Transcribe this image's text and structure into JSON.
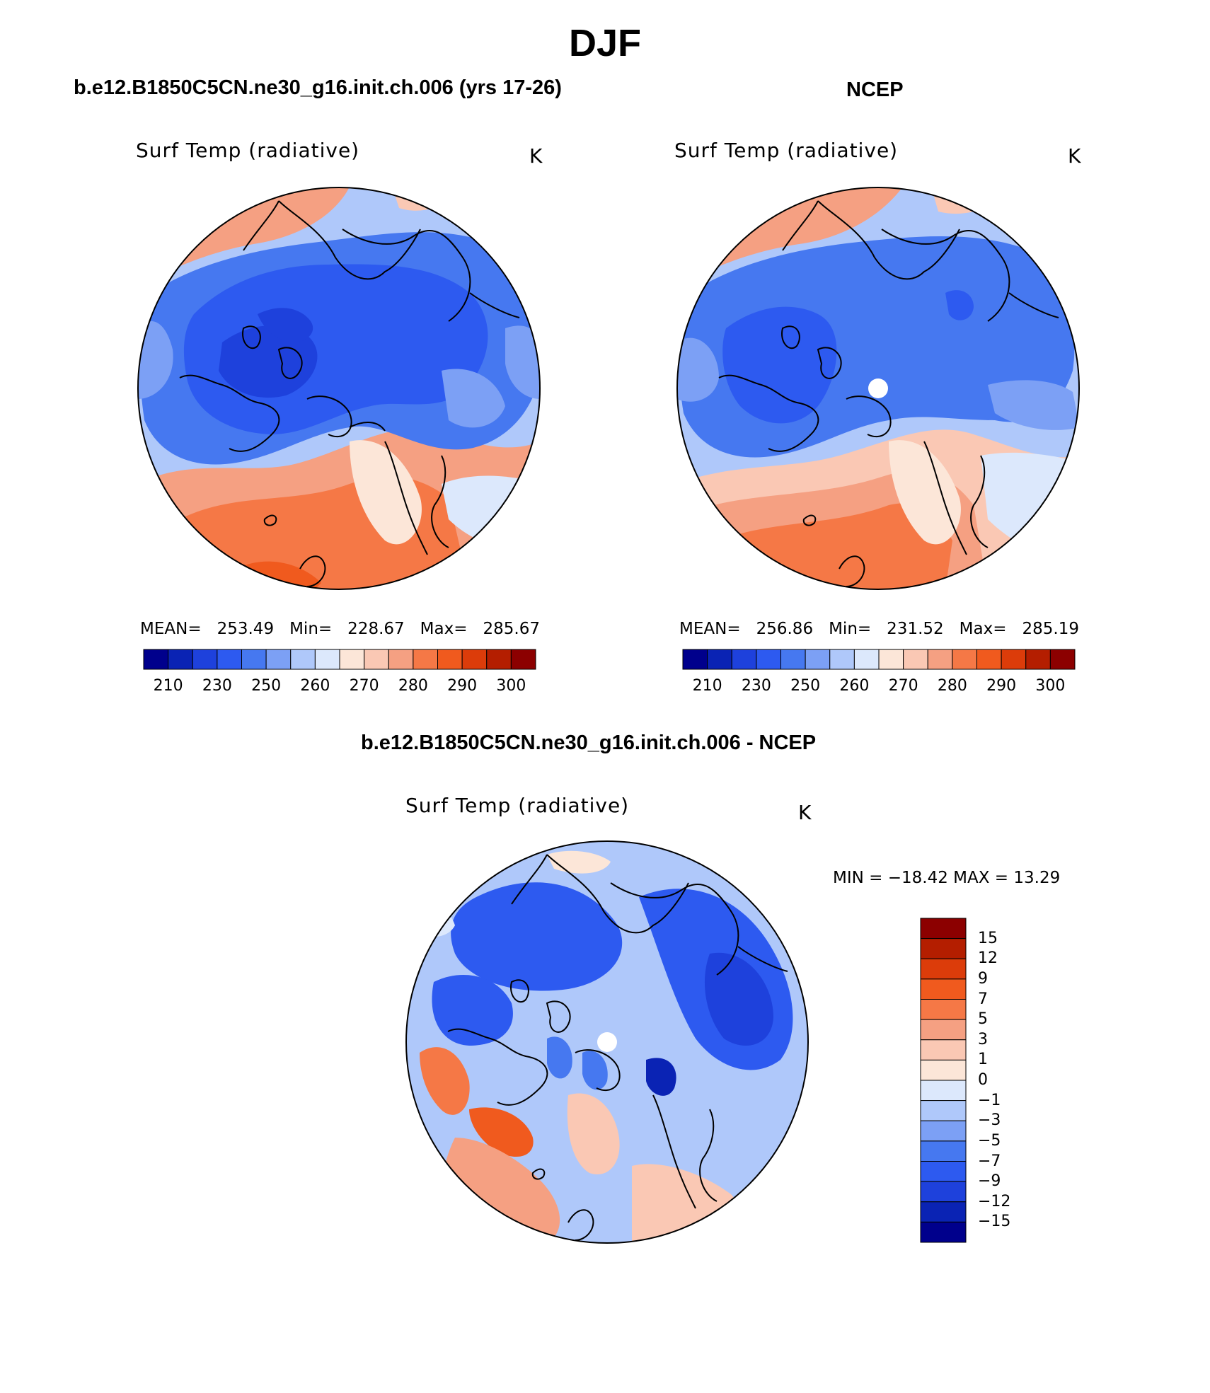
{
  "title": "DJF",
  "panel_left": {
    "title": "b.e12.B1850C5CN.ne30_g16.init.ch.006 (yrs 17-26)",
    "variable": "Surf Temp (radiative)",
    "units": "K",
    "mean_label": "MEAN=",
    "mean": "253.49",
    "min_label": "Min=",
    "min": "228.67",
    "max_label": "Max=",
    "max": "285.67"
  },
  "panel_right": {
    "title": "NCEP",
    "variable": "Surf Temp (radiative)",
    "units": "K",
    "mean_label": "MEAN=",
    "mean": "256.86",
    "min_label": "Min=",
    "min": "231.52",
    "max_label": "Max=",
    "max": "285.19"
  },
  "panel_diff": {
    "title": "b.e12.B1850C5CN.ne30_g16.init.ch.006 - NCEP",
    "variable": "Surf Temp (radiative)",
    "units": "K",
    "minmax": "MIN = −18.42  MAX =   13.29"
  },
  "colorbar_abs": {
    "tick_labels": [
      "210",
      "230",
      "250",
      "260",
      "270",
      "280",
      "290",
      "300"
    ],
    "colors": [
      "#00008c",
      "#0a23b4",
      "#1e41dc",
      "#2d5af0",
      "#4678f0",
      "#7ca0f5",
      "#afc8fa",
      "#dce8fc",
      "#fce6d8",
      "#fac8b4",
      "#f5a082",
      "#f57846",
      "#f05a1e",
      "#dc3c0a",
      "#b41e00",
      "#8c0000"
    ]
  },
  "colorbar_diff": {
    "tick_labels": [
      "15",
      "12",
      "9",
      "7",
      "5",
      "3",
      "1",
      "0",
      "−1",
      "−3",
      "−5",
      "−7",
      "−9",
      "−12",
      "−15"
    ],
    "colors": [
      "#8c0000",
      "#b41e00",
      "#dc3c0a",
      "#f05a1e",
      "#f57846",
      "#f5a082",
      "#fac8b4",
      "#fce6d8",
      "#dce8fc",
      "#afc8fa",
      "#7ca0f5",
      "#4678f0",
      "#2d5af0",
      "#1e41dc",
      "#0a23b4",
      "#00008c"
    ]
  }
}
